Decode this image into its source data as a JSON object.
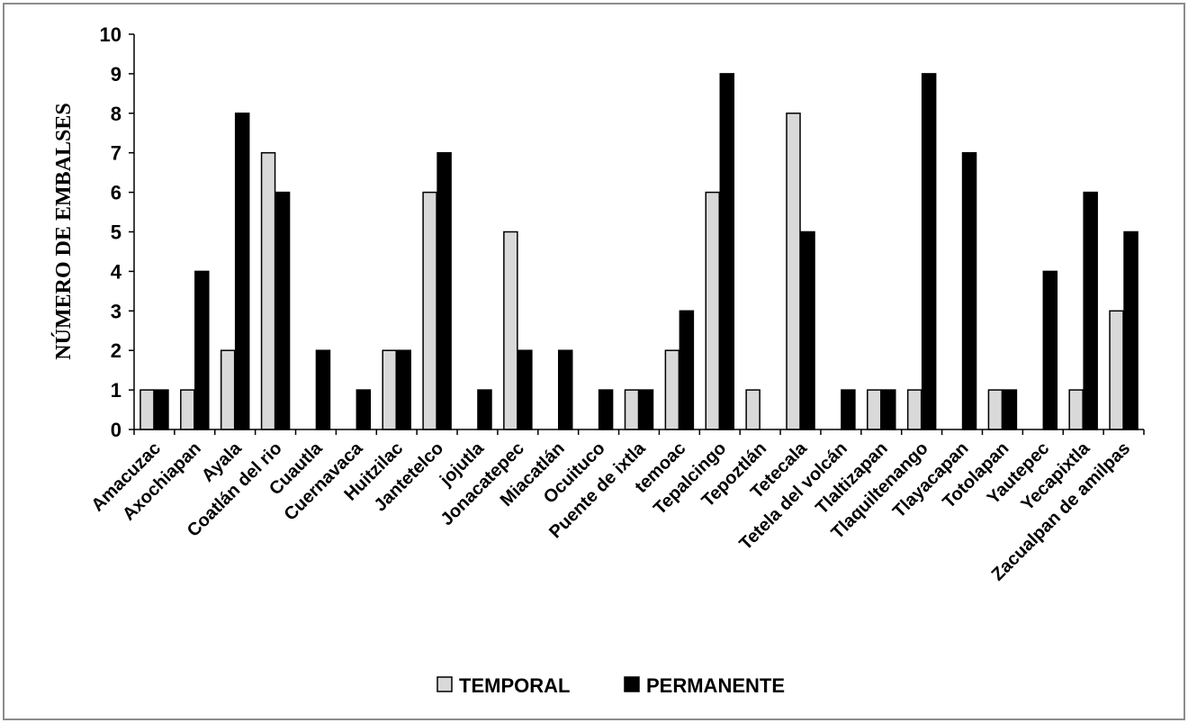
{
  "chart_data": {
    "type": "bar",
    "title": "",
    "xlabel": "",
    "ylabel": "NÚMERO DE EMBALSES",
    "ylim": [
      0,
      10
    ],
    "yticks": [
      "0",
      "1",
      "2",
      "3",
      "4",
      "5",
      "6",
      "7",
      "8",
      "9",
      "10"
    ],
    "grid": false,
    "legend_position": "bottom",
    "categories": [
      "Amacuzac",
      "Axochiapan",
      "Ayala",
      "Coatlán del rio",
      "Cuautla",
      "Cuernavaca",
      "Huitzilac",
      "Jantetelco",
      "jojutla",
      "Jonacatepec",
      "Miacatlán",
      "Ocuituco",
      "Puente de ixtla",
      "temoac",
      "Tepalcingo",
      "Tepoztlán",
      "Tetecala",
      "Tetela del volcán",
      "Tlaltizapan",
      "Tlaquiltenango",
      "Tlayacapan",
      "Totolapan",
      "Yautepec",
      "Yecapixtla",
      "Zacualpan de amilpas"
    ],
    "series": [
      {
        "name": "TEMPORAL",
        "color": "#d9d9d9",
        "values": [
          1,
          1,
          2,
          7,
          0,
          0,
          2,
          6,
          0,
          5,
          0,
          0,
          1,
          2,
          6,
          1,
          8,
          0,
          1,
          1,
          0,
          1,
          0,
          1,
          3
        ]
      },
      {
        "name": "PERMANENTE",
        "color": "#000000",
        "values": [
          1,
          4,
          8,
          6,
          2,
          1,
          2,
          7,
          1,
          2,
          2,
          1,
          1,
          3,
          9,
          0,
          5,
          1,
          1,
          9,
          7,
          1,
          4,
          6,
          5
        ]
      }
    ]
  }
}
